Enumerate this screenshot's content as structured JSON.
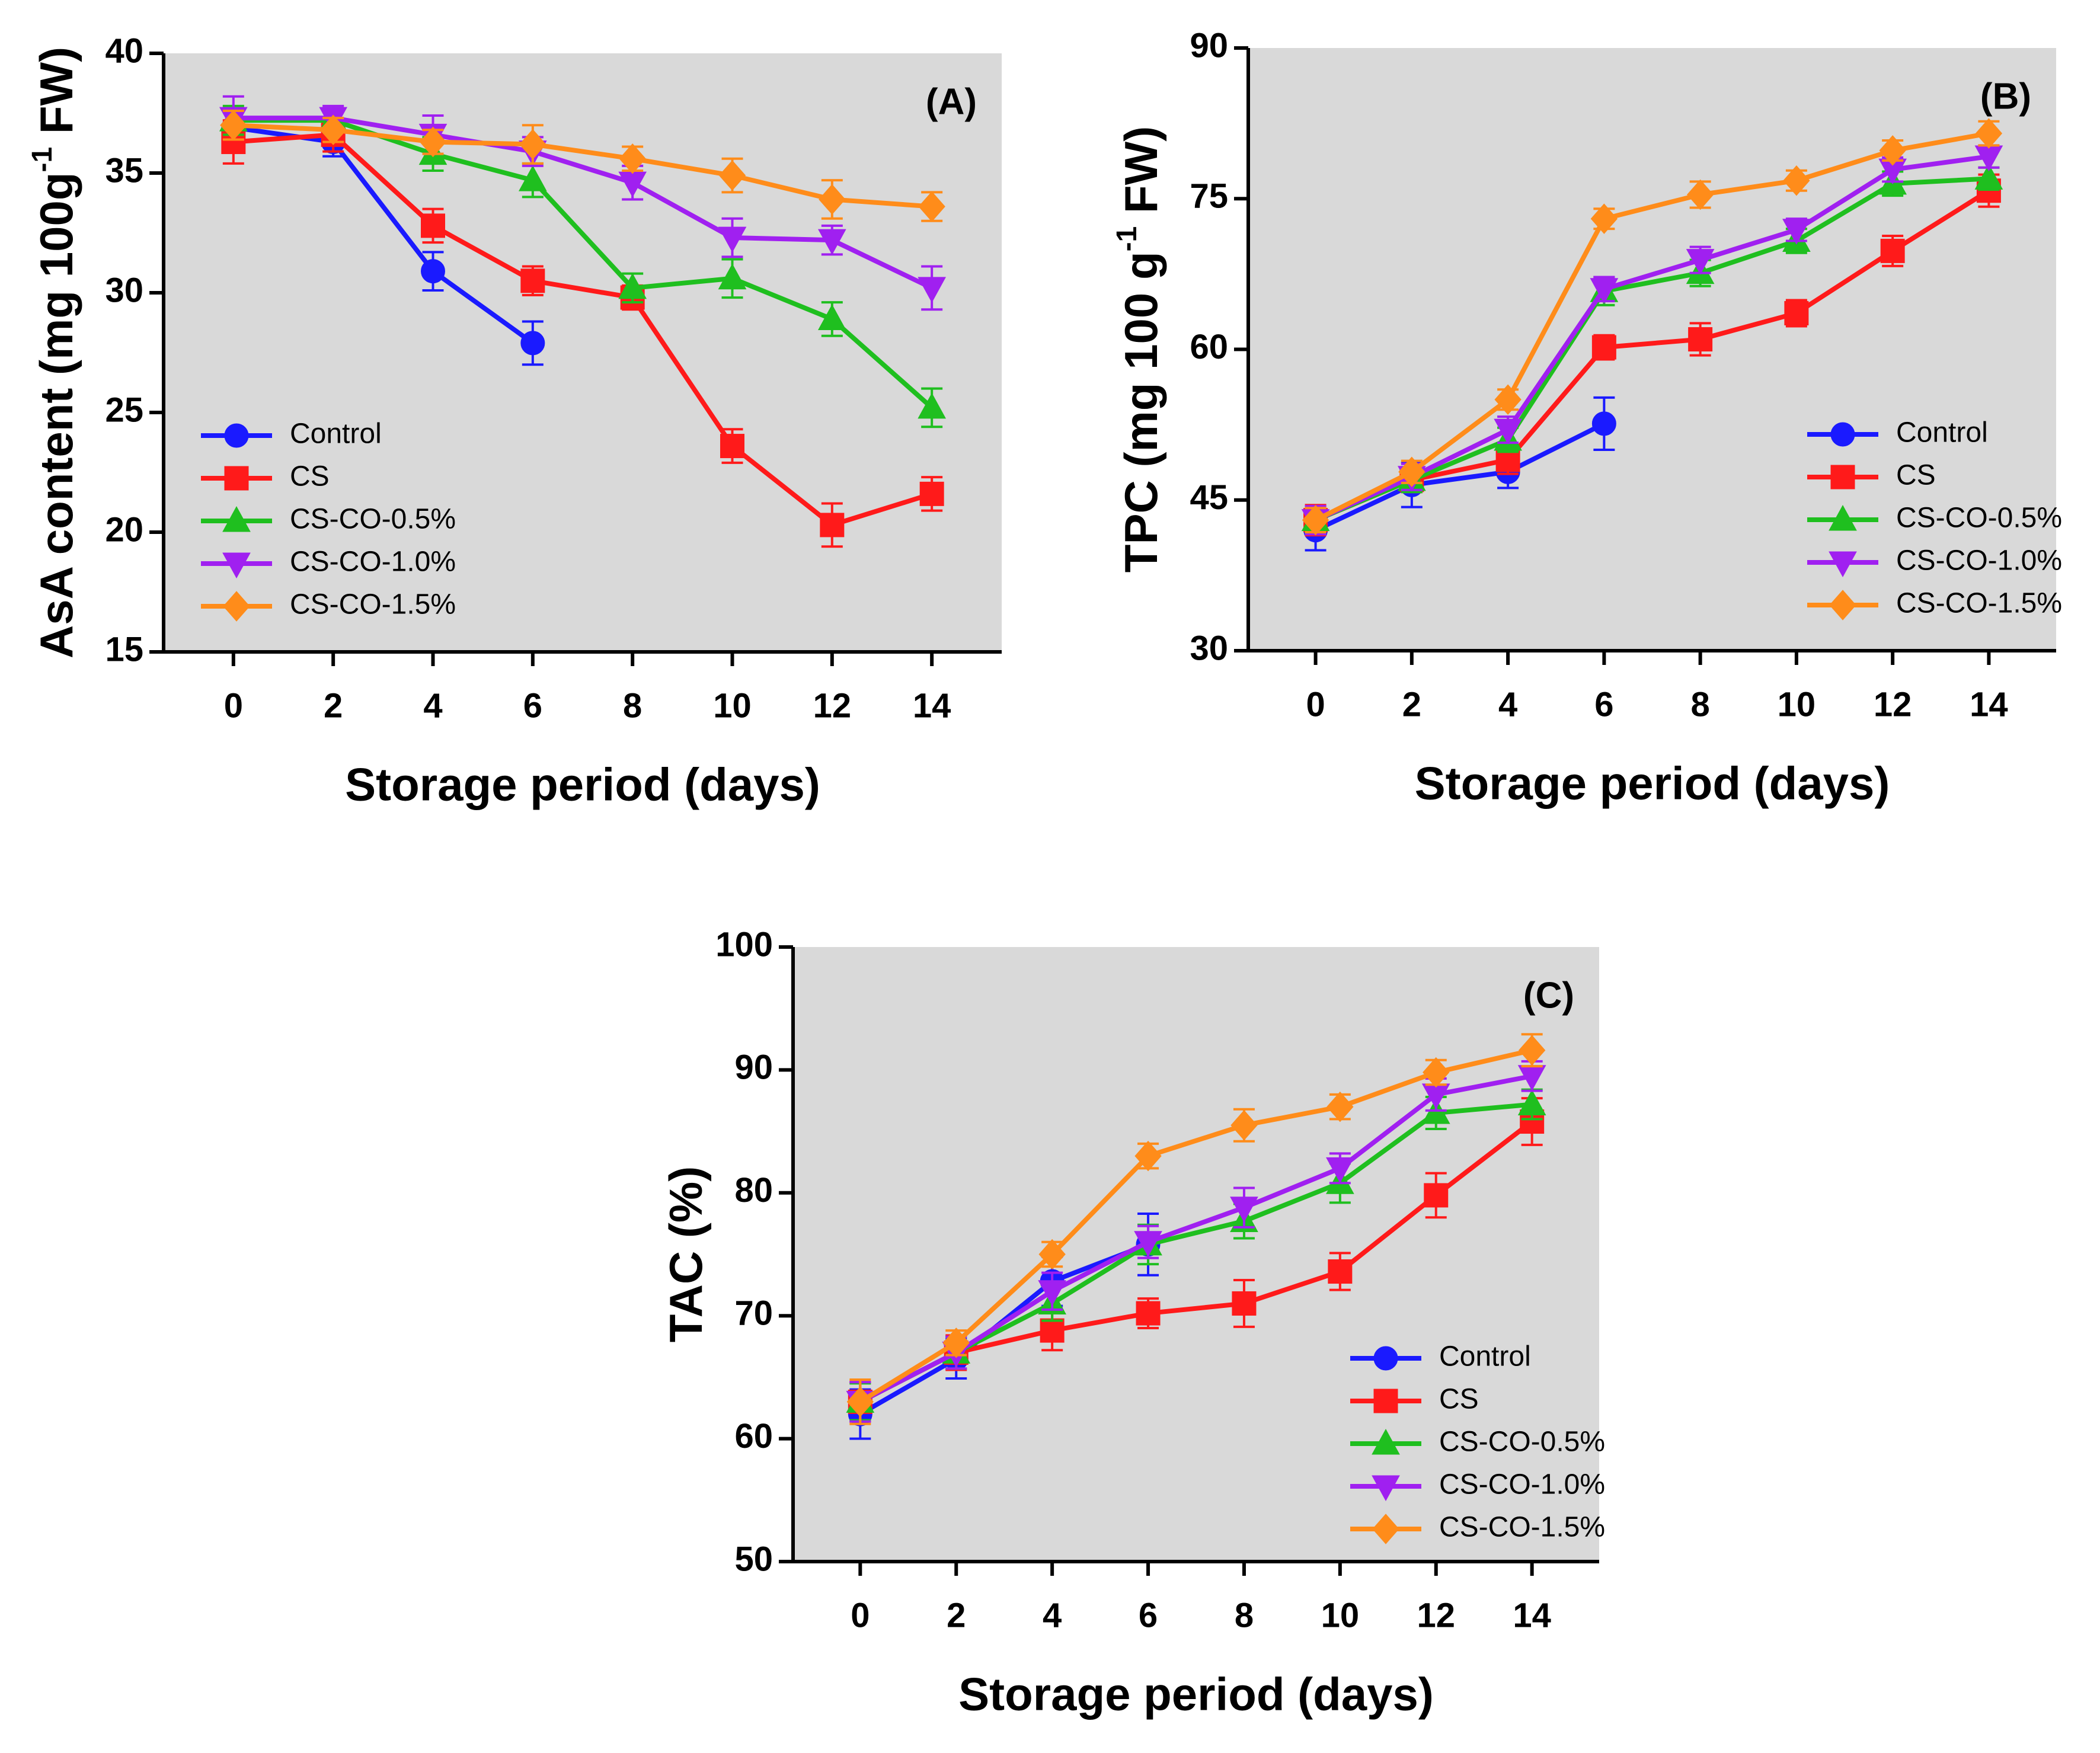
{
  "chart_data": [
    {
      "type": "line",
      "panel_label": "(A)",
      "xlabel": "Storage period (days)",
      "ylabel": [
        "AsA content (mg 100g",
        "-1",
        " FW)"
      ],
      "x": [
        0,
        2,
        4,
        6,
        8,
        10,
        12,
        14
      ],
      "xlim": [
        -1.4,
        15.4
      ],
      "xticks": [
        0,
        2,
        4,
        6,
        8,
        10,
        12,
        14
      ],
      "ylim": [
        15,
        40
      ],
      "yticks": [
        15,
        20,
        25,
        30,
        35,
        40
      ],
      "legend": "lower left",
      "series": [
        {
          "name": "Control",
          "color": "#1a1aff",
          "marker": "circle",
          "values": [
            36.9,
            36.3,
            30.9,
            27.9,
            null,
            null,
            null,
            null
          ],
          "errors": [
            0.8,
            0.6,
            0.8,
            0.9,
            null,
            null,
            null,
            null
          ]
        },
        {
          "name": "CS",
          "color": "#ff1a1a",
          "marker": "square",
          "values": [
            36.3,
            36.6,
            32.8,
            30.5,
            29.8,
            23.6,
            20.3,
            21.6
          ],
          "errors": [
            0.9,
            0.7,
            0.7,
            0.6,
            0.5,
            0.7,
            0.9,
            0.7
          ]
        },
        {
          "name": "CS-CO-0.5%",
          "color": "#1fbf1f",
          "marker": "triangle-up",
          "values": [
            37.2,
            37.2,
            35.8,
            34.7,
            30.2,
            30.6,
            28.9,
            25.2
          ],
          "errors": [
            0.6,
            0.5,
            0.7,
            0.7,
            0.6,
            0.8,
            0.7,
            0.8
          ]
        },
        {
          "name": "CS-CO-1.0%",
          "color": "#a020f0",
          "marker": "triangle-down",
          "values": [
            37.3,
            37.3,
            36.6,
            35.9,
            34.6,
            32.3,
            32.2,
            30.2
          ],
          "errors": [
            0.9,
            0.5,
            0.8,
            0.6,
            0.7,
            0.8,
            0.6,
            0.9
          ]
        },
        {
          "name": "CS-CO-1.5%",
          "color": "#ff8c1a",
          "marker": "diamond",
          "values": [
            37.0,
            36.8,
            36.3,
            36.2,
            35.6,
            34.9,
            33.9,
            33.6
          ],
          "errors": [
            0.6,
            0.5,
            0.5,
            0.8,
            0.5,
            0.7,
            0.8,
            0.6
          ]
        }
      ]
    },
    {
      "type": "line",
      "panel_label": "(B)",
      "xlabel": "Storage period (days)",
      "ylabel": [
        "TPC (mg 100 g",
        "-1",
        " FW)"
      ],
      "x": [
        0,
        2,
        4,
        6,
        8,
        10,
        12,
        14
      ],
      "xlim": [
        -1.4,
        15.4
      ],
      "xticks": [
        0,
        2,
        4,
        6,
        8,
        10,
        12,
        14
      ],
      "ylim": [
        30,
        90
      ],
      "yticks": [
        30,
        45,
        60,
        75,
        90
      ],
      "legend": "lower right",
      "series": [
        {
          "name": "Control",
          "color": "#1a1aff",
          "marker": "circle",
          "values": [
            42.0,
            46.5,
            47.8,
            52.6,
            null,
            null,
            null,
            null
          ],
          "errors": [
            2.0,
            2.2,
            1.6,
            2.6,
            null,
            null,
            null,
            null
          ]
        },
        {
          "name": "CS",
          "color": "#ff1a1a",
          "marker": "square",
          "values": [
            43.0,
            47.0,
            49.0,
            60.2,
            61.0,
            63.6,
            69.8,
            75.8
          ],
          "errors": [
            1.5,
            1.2,
            1.4,
            1.2,
            1.6,
            1.3,
            1.5,
            1.6
          ]
        },
        {
          "name": "CS-CO-0.5%",
          "color": "#1fbf1f",
          "marker": "triangle-up",
          "values": [
            43.0,
            47.0,
            51.0,
            65.8,
            67.6,
            70.8,
            76.5,
            77.0
          ],
          "errors": [
            1.3,
            1.2,
            1.2,
            1.4,
            1.3,
            1.2,
            1.2,
            1.1
          ]
        },
        {
          "name": "CS-CO-1.0%",
          "color": "#a020f0",
          "marker": "triangle-down",
          "values": [
            43.0,
            47.3,
            52.0,
            66.0,
            68.9,
            71.9,
            77.9,
            79.2
          ],
          "errors": [
            1.4,
            1.3,
            1.3,
            1.2,
            1.3,
            1.1,
            1.2,
            1.1
          ]
        },
        {
          "name": "CS-CO-1.5%",
          "color": "#ff8c1a",
          "marker": "diamond",
          "values": [
            43.0,
            47.8,
            55.0,
            73.0,
            75.4,
            76.8,
            79.8,
            81.5
          ],
          "errors": [
            1.2,
            1.1,
            1.0,
            1.0,
            1.3,
            1.0,
            1.0,
            1.2
          ]
        }
      ]
    },
    {
      "type": "line",
      "panel_label": "(C)",
      "xlabel": "Storage period (days)",
      "ylabel": [
        "TAC (%)"
      ],
      "x": [
        0,
        2,
        4,
        6,
        8,
        10,
        12,
        14
      ],
      "xlim": [
        -1.4,
        15.4
      ],
      "xticks": [
        0,
        2,
        4,
        6,
        8,
        10,
        12,
        14
      ],
      "ylim": [
        50,
        100
      ],
      "yticks": [
        50,
        60,
        70,
        80,
        90,
        100
      ],
      "legend": "lower right",
      "series": [
        {
          "name": "Control",
          "color": "#1a1aff",
          "marker": "circle",
          "values": [
            62.0,
            66.5,
            72.8,
            75.8,
            null,
            null,
            null,
            null
          ],
          "errors": [
            2.0,
            1.6,
            2.0,
            2.5,
            null,
            null,
            null,
            null
          ]
        },
        {
          "name": "CS",
          "color": "#ff1a1a",
          "marker": "square",
          "values": [
            63.0,
            67.0,
            68.8,
            70.2,
            71.0,
            73.6,
            79.8,
            85.8
          ],
          "errors": [
            1.6,
            1.4,
            1.6,
            1.2,
            1.9,
            1.5,
            1.8,
            1.9
          ]
        },
        {
          "name": "CS-CO-0.5%",
          "color": "#1fbf1f",
          "marker": "triangle-up",
          "values": [
            63.0,
            67.0,
            71.0,
            75.8,
            77.7,
            80.8,
            86.5,
            87.2
          ],
          "errors": [
            1.5,
            1.3,
            1.4,
            1.6,
            1.4,
            1.6,
            1.3,
            1.2
          ]
        },
        {
          "name": "CS-CO-1.0%",
          "color": "#a020f0",
          "marker": "triangle-down",
          "values": [
            63.0,
            67.0,
            72.0,
            76.0,
            78.8,
            82.0,
            88.0,
            89.5
          ],
          "errors": [
            1.6,
            1.3,
            1.5,
            1.3,
            1.6,
            1.2,
            1.3,
            1.2
          ]
        },
        {
          "name": "CS-CO-1.5%",
          "color": "#ff8c1a",
          "marker": "diamond",
          "values": [
            63.0,
            67.8,
            75.0,
            83.0,
            85.5,
            87.0,
            89.8,
            91.6
          ],
          "errors": [
            1.8,
            1.0,
            1.0,
            1.0,
            1.3,
            1.0,
            1.0,
            1.3
          ]
        }
      ]
    }
  ]
}
